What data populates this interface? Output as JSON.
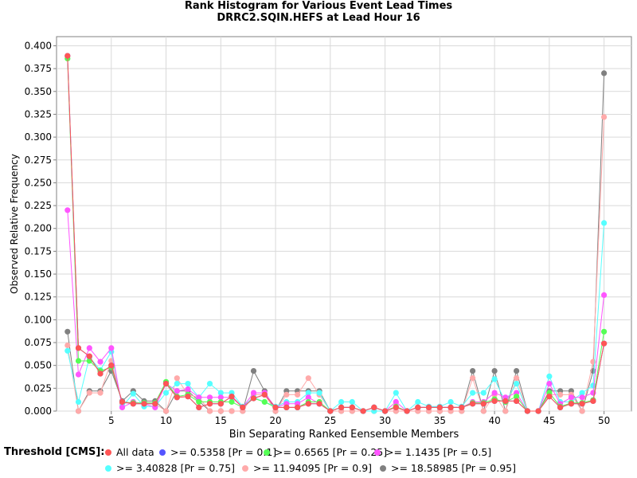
{
  "chart_data": {
    "type": "line",
    "title": "Rank Histogram for Various Event Lead Times",
    "subtitle": "DRRC2.SQIN.HEFS at Lead Hour 16",
    "xlabel": "Bin Separating Ranked Eensemble Members",
    "ylabel": "Observed Relative Frequency",
    "xlim": [
      0,
      52.5
    ],
    "ylim": [
      0,
      0.41
    ],
    "xticks": [
      "5",
      "10",
      "15",
      "20",
      "25",
      "30",
      "35",
      "40",
      "45",
      "50"
    ],
    "yticks": [
      "0.000",
      "0.025",
      "0.050",
      "0.075",
      "0.100",
      "0.125",
      "0.150",
      "0.175",
      "0.200",
      "0.225",
      "0.250",
      "0.275",
      "0.300",
      "0.325",
      "0.350",
      "0.375",
      "0.400"
    ],
    "x": [
      1,
      2,
      3,
      4,
      5,
      6,
      7,
      8,
      9,
      10,
      11,
      12,
      13,
      14,
      15,
      16,
      17,
      18,
      19,
      20,
      21,
      22,
      23,
      24,
      25,
      26,
      27,
      28,
      29,
      30,
      31,
      32,
      33,
      34,
      35,
      36,
      37,
      38,
      39,
      40,
      41,
      42,
      43,
      44,
      45,
      46,
      47,
      48,
      49,
      50
    ],
    "legend_title": "Threshold [CMS]:",
    "grid": true,
    "series": [
      {
        "name": ">= 18.58985 [Pr = 0.95]",
        "color": "#808080",
        "values": [
          0.087,
          0,
          0.022,
          0.022,
          0.044,
          0.011,
          0.022,
          0.011,
          0.011,
          0,
          0.022,
          0.022,
          0.011,
          0,
          0,
          0,
          0,
          0.044,
          0.022,
          0,
          0.022,
          0.022,
          0.022,
          0.022,
          0,
          0,
          0,
          0,
          0,
          0,
          0,
          0,
          0,
          0,
          0,
          0,
          0,
          0.044,
          0,
          0.044,
          0,
          0.044,
          0,
          0,
          0.022,
          0.022,
          0.022,
          0,
          0.044,
          0.37
        ]
      },
      {
        "name": ">= 11.94095 [Pr = 0.9]",
        "color": "#ffaaaa",
        "values": [
          0.072,
          0,
          0.02,
          0.02,
          0.055,
          0.008,
          0.01,
          0.008,
          0.008,
          0,
          0.036,
          0.018,
          0.015,
          0,
          0,
          0,
          0,
          0.018,
          0.018,
          0,
          0.018,
          0.018,
          0.036,
          0.018,
          0,
          0,
          0,
          0,
          0,
          0,
          0,
          0,
          0,
          0,
          0,
          0,
          0,
          0.036,
          0,
          0.018,
          0,
          0.036,
          0,
          0,
          0.018,
          0.018,
          0.018,
          0,
          0.054,
          0.322
        ]
      },
      {
        "name": ">= 3.40828 [Pr = 0.75]",
        "color": "#55ffff",
        "values": [
          0.066,
          0.01,
          0.059,
          0.045,
          0.065,
          0.005,
          0.019,
          0.005,
          0.005,
          0.02,
          0.03,
          0.03,
          0.015,
          0.03,
          0.02,
          0.02,
          0.005,
          0.015,
          0.01,
          0.005,
          0.01,
          0.01,
          0.02,
          0.02,
          0,
          0.01,
          0.01,
          0,
          0,
          0,
          0.02,
          0,
          0.01,
          0.005,
          0.005,
          0.01,
          0.005,
          0.02,
          0.02,
          0.035,
          0.01,
          0.03,
          0,
          0,
          0.038,
          0.01,
          0.01,
          0.02,
          0.028,
          0.206
        ]
      },
      {
        "name": ">= 1.1435 [Pr = 0.5]",
        "color": "#ff55ff",
        "values": [
          0.22,
          0.04,
          0.069,
          0.054,
          0.069,
          0.004,
          0.01,
          0.008,
          0.004,
          0.03,
          0.022,
          0.024,
          0.015,
          0.015,
          0.015,
          0.015,
          0.004,
          0.02,
          0.02,
          0.004,
          0.008,
          0.008,
          0.015,
          0.008,
          0,
          0.004,
          0.004,
          0,
          0.004,
          0,
          0.01,
          0,
          0.004,
          0.004,
          0.004,
          0.004,
          0.004,
          0.01,
          0.01,
          0.02,
          0.015,
          0.02,
          0,
          0,
          0.03,
          0.008,
          0.015,
          0.015,
          0.02,
          0.127
        ]
      },
      {
        "name": ">= 0.6565 [Pr = 0.25]",
        "color": "#55ff55",
        "values": [
          0.386,
          0.055,
          0.055,
          0.044,
          0.048,
          0.01,
          0.009,
          0.009,
          0.009,
          0.032,
          0.016,
          0.018,
          0.01,
          0.01,
          0.01,
          0.01,
          0.004,
          0.014,
          0.01,
          0.004,
          0.004,
          0.004,
          0.01,
          0.01,
          0,
          0.004,
          0.004,
          0,
          0.004,
          0,
          0.005,
          0,
          0.004,
          0.004,
          0.004,
          0.004,
          0.004,
          0.009,
          0.009,
          0.013,
          0.01,
          0.016,
          0,
          0,
          0.02,
          0.005,
          0.009,
          0.009,
          0.012,
          0.087
        ]
      },
      {
        "name": ">= 0.5358 [Pr = 0.1]",
        "color": "#5555ff",
        "values": [
          0.389,
          0.069,
          0.06,
          0.041,
          0.05,
          0.01,
          0.008,
          0.008,
          0.008,
          0.03,
          0.015,
          0.016,
          0.004,
          0.008,
          0.008,
          0.016,
          0.004,
          0.014,
          0.018,
          0.004,
          0.004,
          0.004,
          0.008,
          0.008,
          0,
          0.004,
          0.004,
          0,
          0.004,
          0,
          0.004,
          0,
          0.004,
          0.004,
          0.004,
          0.004,
          0.004,
          0.008,
          0.008,
          0.011,
          0.011,
          0.011,
          0,
          0,
          0.016,
          0.004,
          0.008,
          0.008,
          0.011,
          0.074
        ]
      },
      {
        "name": "All data",
        "color": "#ff5555",
        "values": [
          0.389,
          0.069,
          0.06,
          0.041,
          0.05,
          0.01,
          0.008,
          0.008,
          0.008,
          0.03,
          0.015,
          0.016,
          0.004,
          0.008,
          0.008,
          0.016,
          0.004,
          0.014,
          0.018,
          0.004,
          0.004,
          0.004,
          0.008,
          0.008,
          0,
          0.004,
          0.004,
          0,
          0.004,
          0,
          0.004,
          0,
          0.004,
          0.004,
          0.004,
          0.004,
          0.004,
          0.008,
          0.008,
          0.011,
          0.011,
          0.011,
          0,
          0,
          0.016,
          0.004,
          0.008,
          0.008,
          0.011,
          0.074
        ]
      }
    ],
    "legend_order": [
      "All data",
      ">= 0.5358 [Pr = 0.1]",
      ">= 0.6565 [Pr = 0.25]",
      ">= 1.1435 [Pr = 0.5]",
      ">= 3.40828 [Pr = 0.75]",
      ">= 11.94095 [Pr = 0.9]",
      ">= 18.58985 [Pr = 0.95]"
    ]
  }
}
